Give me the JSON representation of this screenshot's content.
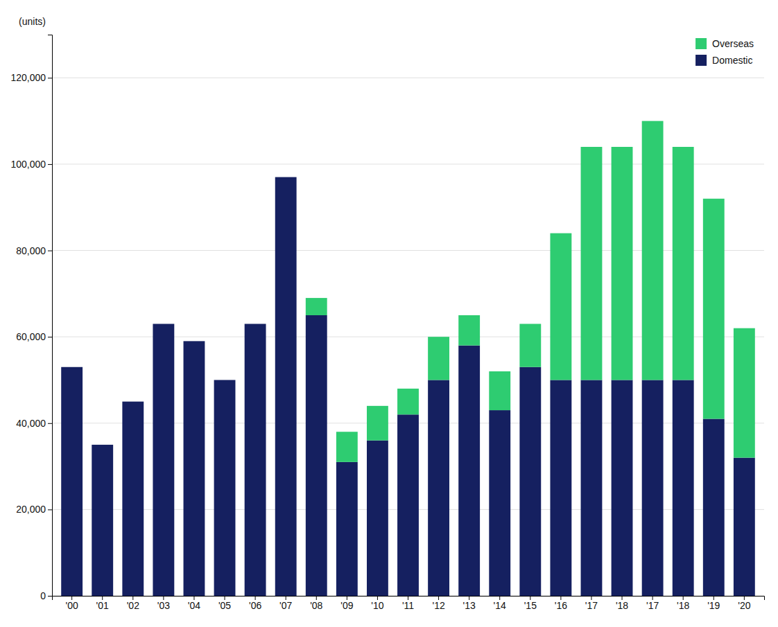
{
  "chart_data": {
    "type": "bar",
    "stacked": true,
    "grid": true,
    "legend": "upper right",
    "ylabel": "(units)",
    "categories": [
      "'00",
      "'01",
      "'02",
      "'03",
      "'04",
      "'05",
      "'06",
      "'07",
      "'08",
      "'09",
      "'10",
      "'11",
      "'12",
      "'13",
      "'14",
      "'15",
      "'16",
      "'17",
      "'18",
      "'17",
      "'18",
      "'19",
      "'20"
    ],
    "series": [
      {
        "name": "Domestic",
        "color": "#152060",
        "values": [
          53000,
          35000,
          45000,
          63000,
          59000,
          50000,
          63000,
          97000,
          65000,
          31000,
          36000,
          42000,
          50000,
          58000,
          43000,
          53000,
          50000,
          50000,
          50000,
          50000,
          50000,
          41000,
          32000
        ]
      },
      {
        "name": "Overseas",
        "color": "#2ecc71",
        "values": [
          0,
          0,
          0,
          0,
          0,
          0,
          0,
          0,
          4000,
          7000,
          8000,
          6000,
          10000,
          7000,
          9000,
          10000,
          34000,
          54000,
          54000,
          60000,
          54000,
          51000,
          30000
        ]
      }
    ],
    "ylim": [
      0,
      130000
    ],
    "yticks": [
      0,
      {
        "value": 20000,
        "label": "20,000"
      },
      {
        "value": 40000,
        "label": "40,000"
      },
      {
        "value": 60000,
        "label": "60,000"
      },
      {
        "value": 80000,
        "label": "80,000"
      },
      {
        "value": 100000,
        "label": "100,000"
      },
      {
        "value": 120000,
        "label": "120,000"
      }
    ]
  }
}
